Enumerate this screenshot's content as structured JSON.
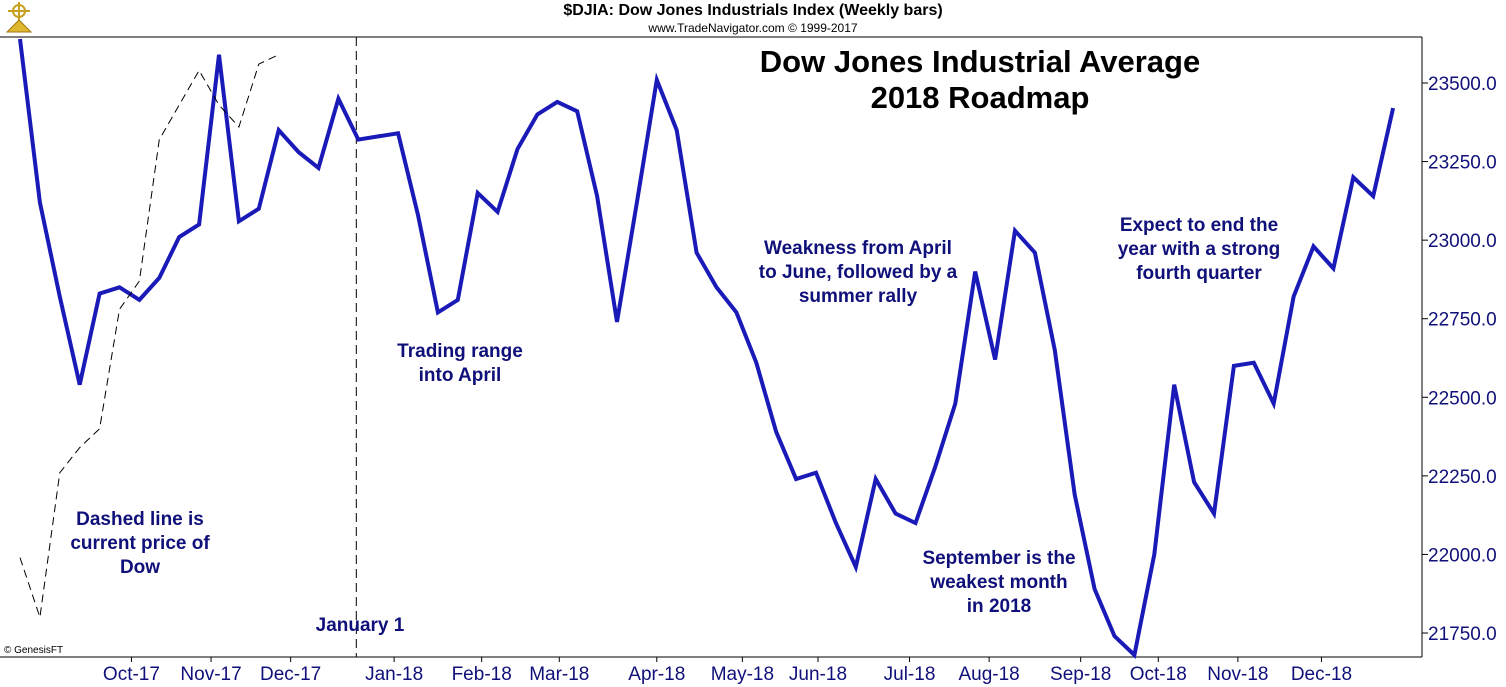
{
  "header": {
    "title": "$DJIA:  Dow Jones Industrials Index  (Weekly bars)",
    "source": "www.TradeNavigator.com © 1999-2017",
    "credit": "© GenesisFT"
  },
  "chart_data": {
    "type": "line",
    "title_line1": "Dow Jones Industrial Average",
    "title_line2": "2018 Roadmap",
    "ylim": [
      21680,
      23640
    ],
    "y_ticks": [
      21750,
      22000,
      22250,
      22500,
      22750,
      23000,
      23250,
      23500
    ],
    "y_tick_labels": [
      "21750.0",
      "22000.0",
      "22250.0",
      "22500.0",
      "22750.0",
      "23000.0",
      "23250.0",
      "23500.0"
    ],
    "x_tick_labels": [
      "Oct-17",
      "Nov-17",
      "Dec-17",
      "Jan-18",
      "Feb-18",
      "Mar-18",
      "Apr-18",
      "May-18",
      "Jun-18",
      "Jul-18",
      "Aug-18",
      "Sep-18",
      "Oct-18",
      "Nov-18",
      "Dec-18"
    ],
    "x_tick_index": [
      5.6,
      9.6,
      13.6,
      18.8,
      23.2,
      27.1,
      32.0,
      36.3,
      40.1,
      44.7,
      48.7,
      53.3,
      57.2,
      61.2,
      65.4
    ],
    "vertical_marker_index": 16.9,
    "series": [
      {
        "style": "solid",
        "color": "#1a1ab8",
        "values": [
          23640,
          23120,
          22820,
          22540,
          22830,
          22850,
          22810,
          22880,
          23010,
          23050,
          23590,
          23060,
          23100,
          23350,
          23280,
          23230,
          23450,
          23320,
          23330,
          23340,
          23080,
          22770,
          22810,
          23150,
          23090,
          23290,
          23400,
          23440,
          23410,
          23140,
          22740,
          23120,
          23510,
          23350,
          22960,
          22850,
          22770,
          22610,
          22390,
          22240,
          22260,
          22100,
          21960,
          22240,
          22130,
          22100,
          22280,
          22480,
          22900,
          22620,
          23030,
          22960,
          22650,
          22190,
          21890,
          21740,
          21680,
          22000,
          22540,
          22230,
          22130,
          22600,
          22610,
          22480,
          22820,
          22980,
          22910,
          23200,
          23140,
          23420
        ]
      },
      {
        "style": "dashed",
        "color": "#000000",
        "values": [
          21990,
          21800,
          22260,
          22340,
          22400,
          22780,
          22870,
          23320,
          23430,
          23540,
          23430,
          23360,
          23560,
          23590
        ]
      }
    ],
    "annotations": [
      "Dashed line is\ncurrent price of\nDow",
      "January 1",
      "Trading range\ninto April",
      "Weakness from April\nto June, followed by a\nsummer rally",
      "September is the\nweakest month\nin 2018",
      "Expect to end the\nyear with a strong\nfourth quarter"
    ]
  }
}
